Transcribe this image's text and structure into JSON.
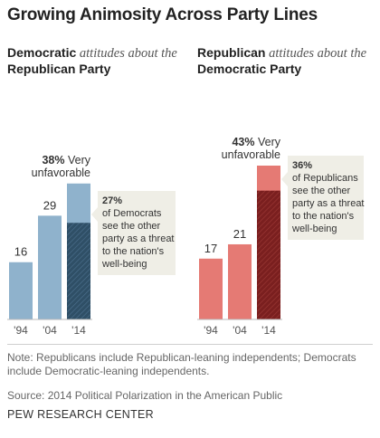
{
  "title": "Growing Animosity Across Party Lines",
  "headings": {
    "left": {
      "bold": "Democratic",
      "italic": " attitudes about the",
      "bold2": "Republican Party"
    },
    "right": {
      "bold": "Republican",
      "italic": " attitudes about the",
      "bold2": "Democratic Party"
    }
  },
  "chart_data": [
    {
      "type": "bar",
      "title": "Democratic attitudes about the Republican Party",
      "categories": [
        "'94",
        "'04",
        "'14"
      ],
      "series": [
        {
          "name": "Very unfavorable",
          "values": [
            16,
            29,
            38
          ]
        },
        {
          "name": "Party as a threat to the nation's well-being",
          "values": [
            null,
            null,
            27
          ]
        }
      ],
      "value_labels": [
        "16",
        "29",
        "38%"
      ],
      "last_label_suffix": " Very unfavorable",
      "callout": {
        "value": "27%",
        "lines": [
          "of Democrats",
          "see the other",
          "party as a threat",
          "to the nation's",
          "well-being"
        ]
      },
      "colors": {
        "base": "#8fb2cc",
        "threat": "#2f4f66"
      }
    },
    {
      "type": "bar",
      "title": "Republican attitudes about the Democratic Party",
      "categories": [
        "'94",
        "'04",
        "'14"
      ],
      "series": [
        {
          "name": "Very unfavorable",
          "values": [
            17,
            21,
            43
          ]
        },
        {
          "name": "Party as a threat to the nation's well-being",
          "values": [
            null,
            null,
            36
          ]
        }
      ],
      "value_labels": [
        "17",
        "21",
        "43%"
      ],
      "last_label_suffix": " Very unfavorable",
      "callout": {
        "value": "36%",
        "lines": [
          "of Republicans",
          "see the other",
          "party as a threat",
          "to the nation's",
          "well-being"
        ]
      },
      "colors": {
        "base": "#e57a74",
        "threat": "#7a1f1f"
      }
    }
  ],
  "note": "Note: Republicans include Republican-leaning independents; Democrats include Democratic-leaning independents.",
  "source": "Source: 2014 Political Polarization in the American Public",
  "brand": "PEW RESEARCH CENTER",
  "colors": {
    "callout_bg": "#efeee6",
    "axis": "#9a9a9a"
  }
}
